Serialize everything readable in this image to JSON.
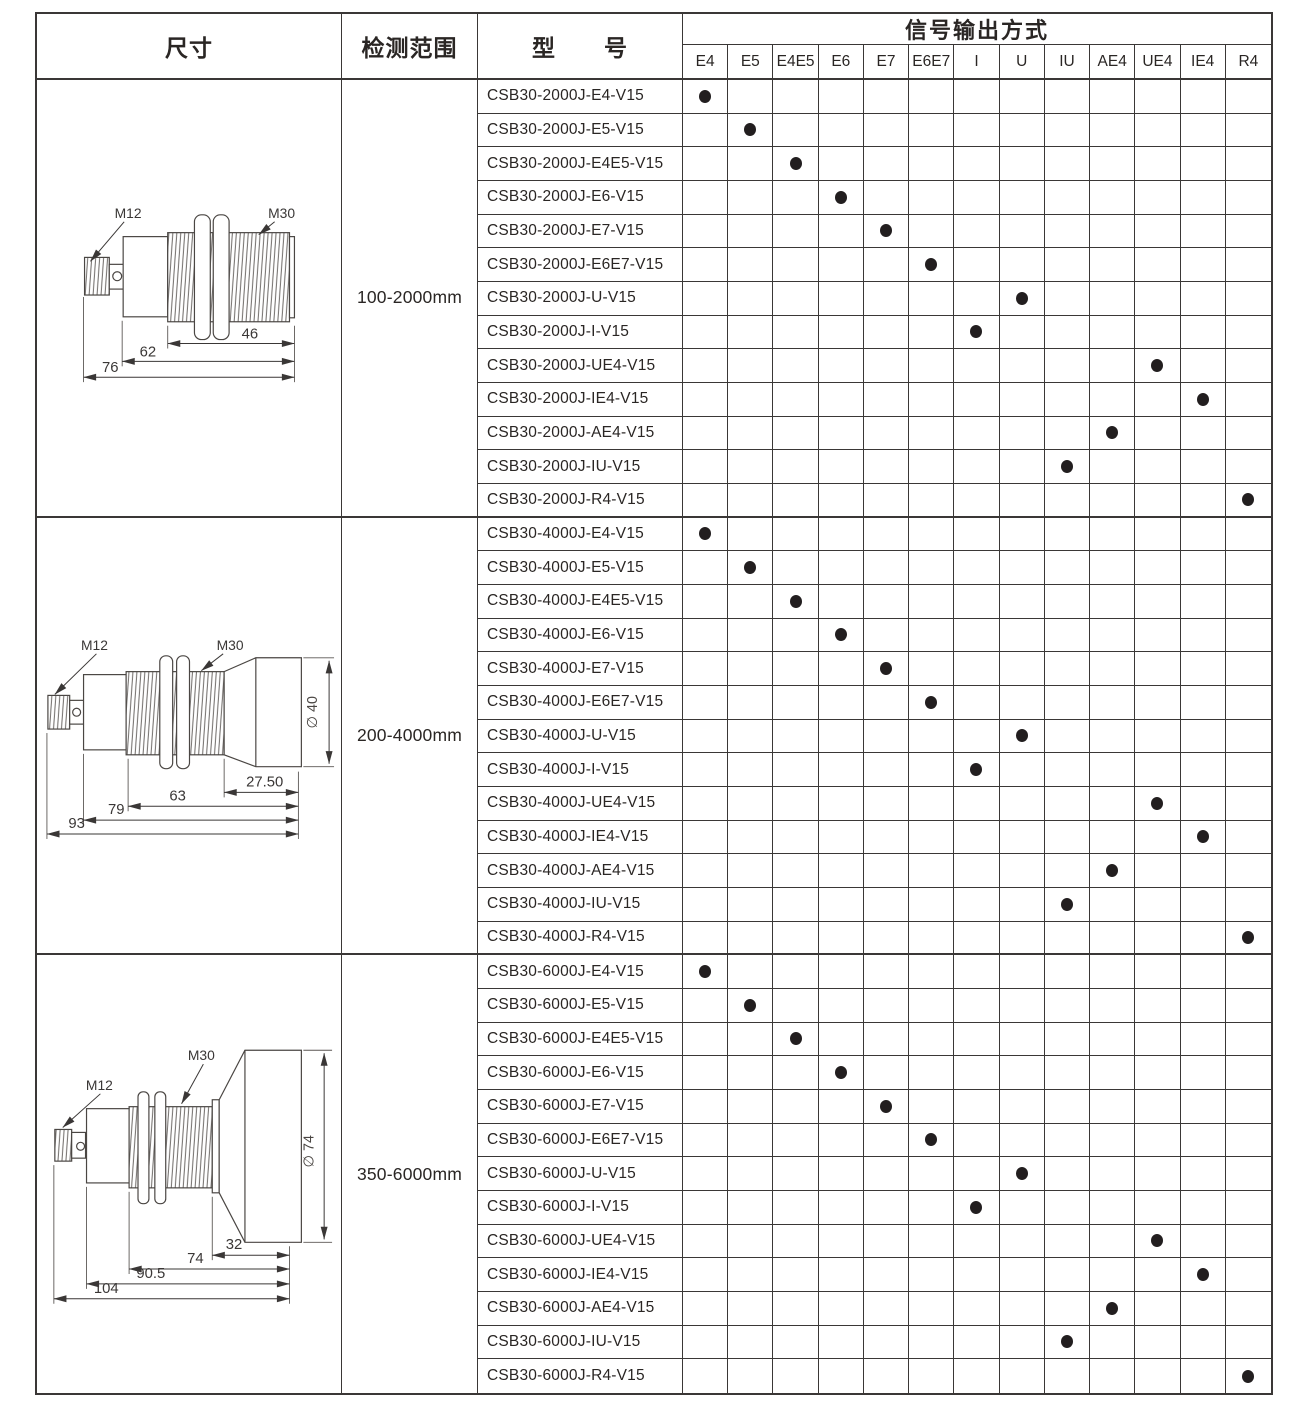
{
  "header": {
    "col_size": "尺寸",
    "col_range": "检测范围",
    "col_model": "型　　号",
    "col_output": "信号输出方式",
    "output_columns": [
      "E4",
      "E5",
      "E4E5",
      "E6",
      "E7",
      "E6E7",
      "I",
      "U",
      "IU",
      "AE4",
      "UE4",
      "IE4",
      "R4"
    ]
  },
  "groups": [
    {
      "range": "100-2000mm",
      "drawing": {
        "label_left_thread": "M12",
        "label_right_thread": "M30",
        "dims": [
          "46",
          "62",
          "76"
        ]
      },
      "rows": [
        {
          "model": "CSB30-2000J-E4-V15",
          "output": "E4"
        },
        {
          "model": "CSB30-2000J-E5-V15",
          "output": "E5"
        },
        {
          "model": "CSB30-2000J-E4E5-V15",
          "output": "E4E5"
        },
        {
          "model": "CSB30-2000J-E6-V15",
          "output": "E6"
        },
        {
          "model": "CSB30-2000J-E7-V15",
          "output": "E7"
        },
        {
          "model": "CSB30-2000J-E6E7-V15",
          "output": "E6E7"
        },
        {
          "model": "CSB30-2000J-U-V15",
          "output": "U"
        },
        {
          "model": "CSB30-2000J-I-V15",
          "output": "I"
        },
        {
          "model": "CSB30-2000J-UE4-V15",
          "output": "UE4"
        },
        {
          "model": "CSB30-2000J-IE4-V15",
          "output": "IE4"
        },
        {
          "model": "CSB30-2000J-AE4-V15",
          "output": "AE4"
        },
        {
          "model": "CSB30-2000J-IU-V15",
          "output": "IU"
        },
        {
          "model": "CSB30-2000J-R4-V15",
          "output": "R4"
        }
      ]
    },
    {
      "range": "200-4000mm",
      "drawing": {
        "label_left_thread": "M12",
        "label_right_thread": "M30",
        "diameter": "∅ 40",
        "dims": [
          "27.50",
          "63",
          "79",
          "93"
        ]
      },
      "rows": [
        {
          "model": "CSB30-4000J-E4-V15",
          "output": "E4"
        },
        {
          "model": "CSB30-4000J-E5-V15",
          "output": "E5"
        },
        {
          "model": "CSB30-4000J-E4E5-V15",
          "output": "E4E5"
        },
        {
          "model": "CSB30-4000J-E6-V15",
          "output": "E6"
        },
        {
          "model": "CSB30-4000J-E7-V15",
          "output": "E7"
        },
        {
          "model": "CSB30-4000J-E6E7-V15",
          "output": "E6E7"
        },
        {
          "model": "CSB30-4000J-U-V15",
          "output": "U"
        },
        {
          "model": "CSB30-4000J-I-V15",
          "output": "I"
        },
        {
          "model": "CSB30-4000J-UE4-V15",
          "output": "UE4"
        },
        {
          "model": "CSB30-4000J-IE4-V15",
          "output": "IE4"
        },
        {
          "model": "CSB30-4000J-AE4-V15",
          "output": "AE4"
        },
        {
          "model": "CSB30-4000J-IU-V15",
          "output": "IU"
        },
        {
          "model": "CSB30-4000J-R4-V15",
          "output": "R4"
        }
      ]
    },
    {
      "range": "350-6000mm",
      "drawing": {
        "label_left_thread": "M12",
        "label_right_thread": "M30",
        "diameter": "∅ 74",
        "dims": [
          "32",
          "74",
          "90.5",
          "104"
        ]
      },
      "rows": [
        {
          "model": "CSB30-6000J-E4-V15",
          "output": "E4"
        },
        {
          "model": "CSB30-6000J-E5-V15",
          "output": "E5"
        },
        {
          "model": "CSB30-6000J-E4E5-V15",
          "output": "E4E5"
        },
        {
          "model": "CSB30-6000J-E6-V15",
          "output": "E6"
        },
        {
          "model": "CSB30-6000J-E7-V15",
          "output": "E7"
        },
        {
          "model": "CSB30-6000J-E6E7-V15",
          "output": "E6E7"
        },
        {
          "model": "CSB30-6000J-U-V15",
          "output": "U"
        },
        {
          "model": "CSB30-6000J-I-V15",
          "output": "I"
        },
        {
          "model": "CSB30-6000J-UE4-V15",
          "output": "UE4"
        },
        {
          "model": "CSB30-6000J-IE4-V15",
          "output": "IE4"
        },
        {
          "model": "CSB30-6000J-AE4-V15",
          "output": "AE4"
        },
        {
          "model": "CSB30-6000J-IU-V15",
          "output": "IU"
        },
        {
          "model": "CSB30-6000J-R4-V15",
          "output": "R4"
        }
      ]
    }
  ],
  "colors": {
    "grid_line": "#3a3736",
    "dot": "#221e1f"
  }
}
